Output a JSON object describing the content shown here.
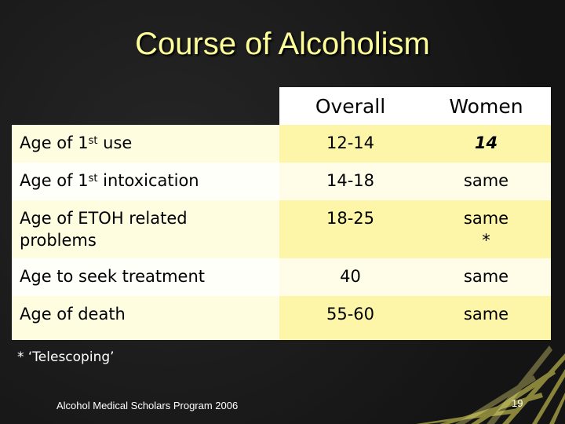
{
  "slide": {
    "title": "Course of Alcoholism",
    "footnote": "* ‘Telescoping’",
    "footer": "Alcohol Medical Scholars Program 2006",
    "page_number": "19"
  },
  "table": {
    "headers": {
      "overall": "Overall",
      "women": "Women"
    },
    "rows": [
      {
        "label_pre": "Age of 1",
        "label_sup": "st",
        "label_post": " use",
        "overall": "12-14",
        "women": "14"
      },
      {
        "label_pre": "Age of 1",
        "label_sup": "st",
        "label_post": " intoxication",
        "overall": "14-18",
        "women": "same"
      },
      {
        "label_line1": "Age of ETOH related",
        "label_line2": "problems",
        "overall": "18-25",
        "women": "same",
        "women_mark": "*"
      },
      {
        "label": "Age to seek treatment",
        "overall": "40",
        "women": "same"
      },
      {
        "label": "Age of death",
        "overall": "55-60",
        "women": "same"
      }
    ]
  },
  "colors": {
    "background": "#1a1a1a",
    "title": "#ffff99",
    "row_light": "#fffde0",
    "row_yellow": "#fdf6a8",
    "header_bg": "#ffffff",
    "rays": "#e8e05a"
  }
}
